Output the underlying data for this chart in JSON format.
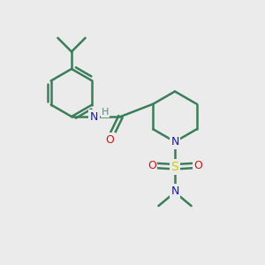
{
  "background_color": "#ebebeb",
  "atom_colors": {
    "C": "#3a7d5a",
    "N": "#1414cc",
    "O": "#cc1414",
    "S": "#cccc00",
    "H": "#5a8888"
  },
  "bond_color": "#3a7d5a",
  "line_width": 1.8,
  "figsize": [
    3.0,
    3.0
  ],
  "dpi": 100
}
